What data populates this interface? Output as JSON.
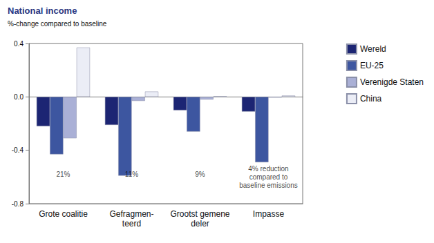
{
  "chart_data": {
    "type": "bar",
    "title": "National income",
    "subtitle": "%-change compared to baseline",
    "categories": [
      "Grote coalitie",
      "Gefragmen-\nteerd",
      "Grootst gemene\ndeler",
      "Impasse"
    ],
    "series": [
      {
        "name": "Wereld",
        "color": "#1c2573",
        "values": [
          -0.22,
          -0.21,
          -0.1,
          -0.11
        ]
      },
      {
        "name": "EU-25",
        "color": "#3d56a0",
        "values": [
          -0.43,
          -0.59,
          -0.26,
          -0.49
        ]
      },
      {
        "name": "Verenigde Staten",
        "color": "#aab0d6",
        "values": [
          -0.31,
          -0.03,
          -0.02,
          -0.005
        ]
      },
      {
        "name": "China",
        "color": "#ebedf6",
        "values": [
          0.37,
          0.04,
          0.005,
          0.01
        ]
      }
    ],
    "annotations": [
      {
        "text": "21%",
        "category": "Grote coalitie",
        "y": -0.58
      },
      {
        "text": "11%",
        "category": "Gefragmen-\nteerd",
        "y": -0.58
      },
      {
        "text": "9%",
        "category": "Grootst gemene\ndeler",
        "y": -0.58
      },
      {
        "text": "4% reduction\ncompared to\nbaseline emissions",
        "category": "Impasse",
        "y": -0.6
      }
    ],
    "ylim": [
      -0.8,
      0.4
    ],
    "yticks": [
      -0.8,
      -0.4,
      {
        "value": 0,
        "label": "0.0"
      },
      0.4
    ],
    "grid": false,
    "legend": "right"
  }
}
